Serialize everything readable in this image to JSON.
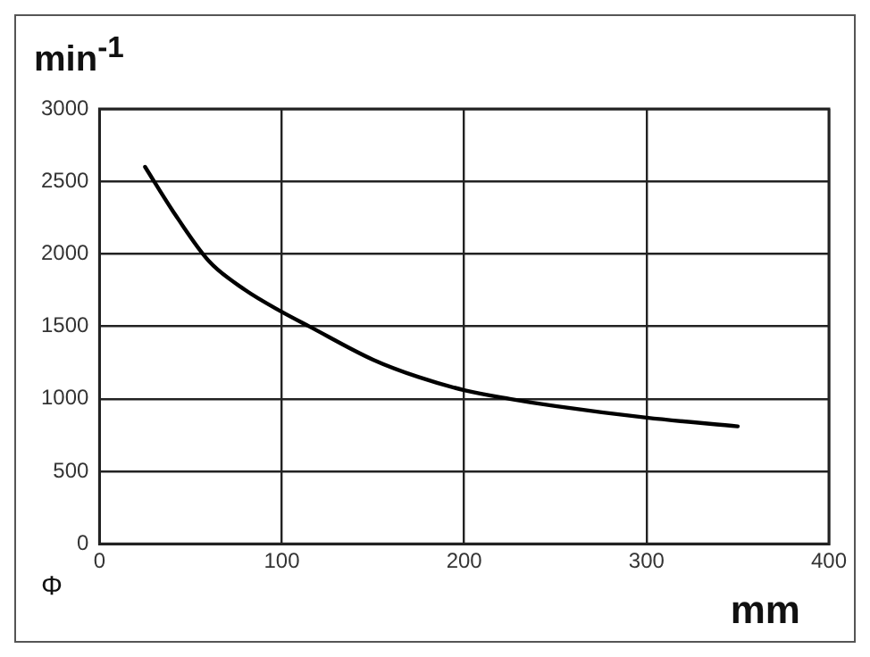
{
  "chart_data": {
    "type": "line",
    "ylabel": "min$^{-1}$",
    "xlabel": "mm",
    "annotations": [
      "Φ"
    ],
    "series": [
      {
        "color": "#000000",
        "x": [
          25,
          40,
          60,
          80,
          100,
          115,
          150,
          175,
          200,
          225,
          250,
          300,
          350
        ],
        "values": [
          2600,
          2300,
          1950,
          1750,
          1600,
          1500,
          1270,
          1150,
          1060,
          1000,
          950,
          870,
          810
        ]
      }
    ],
    "xlim": [
      0,
      400
    ],
    "xticks": [
      0,
      100,
      200,
      300,
      400
    ],
    "ylim": [
      0,
      3000
    ],
    "yticks": [
      0,
      500,
      1000,
      1500,
      2000,
      2500,
      3000
    ],
    "grid": true,
    "legend": false,
    "marker": "none",
    "line_style": "solid"
  }
}
